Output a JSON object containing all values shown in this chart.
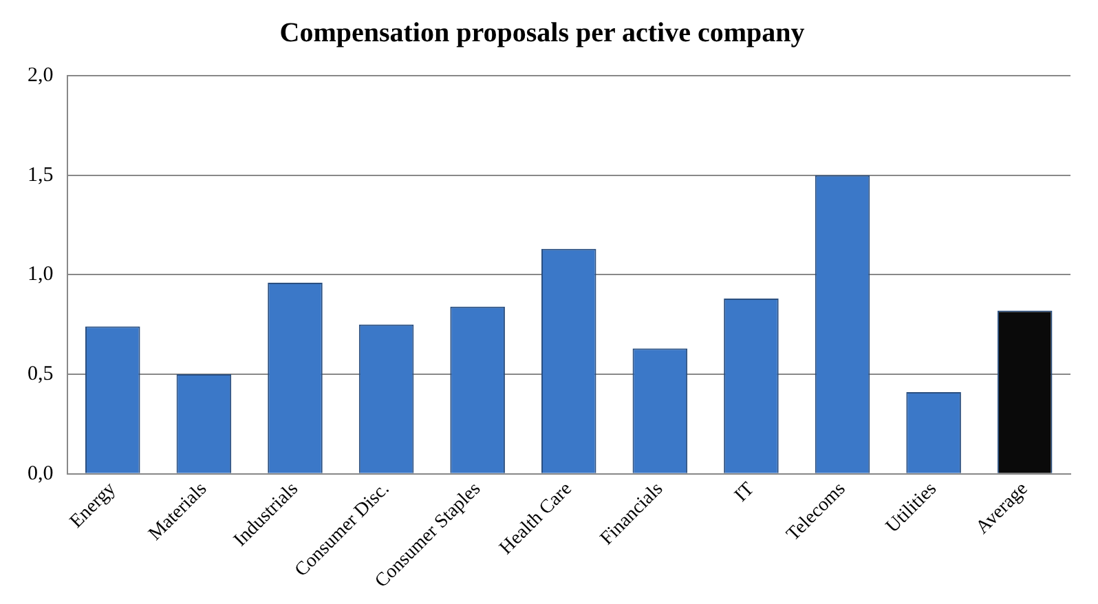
{
  "chart_data": {
    "type": "bar",
    "title": "Compensation proposals per active company",
    "categories": [
      "Energy",
      "Materials",
      "Industrials",
      "Consumer Disc.",
      "Consumer Staples",
      "Health Care",
      "Financials",
      "IT",
      "Telecoms",
      "Utilities",
      "Average"
    ],
    "values": [
      0.74,
      0.5,
      0.96,
      0.75,
      0.84,
      1.13,
      0.63,
      0.88,
      1.5,
      0.41,
      0.82
    ],
    "colors": [
      "#3b78c8",
      "#3b78c8",
      "#3b78c8",
      "#3b78c8",
      "#3b78c8",
      "#3b78c8",
      "#3b78c8",
      "#3b78c8",
      "#3b78c8",
      "#3b78c8",
      "#0a0a0a"
    ],
    "ylim": [
      0,
      2
    ],
    "yticks": [
      {
        "value": 0,
        "label": "0,0"
      },
      {
        "value": 0.5,
        "label": "0,5"
      },
      {
        "value": 1,
        "label": "1,0"
      },
      {
        "value": 1.5,
        "label": "1,5"
      },
      {
        "value": 2,
        "label": "2,0"
      }
    ],
    "grid": "y",
    "legend": false
  }
}
